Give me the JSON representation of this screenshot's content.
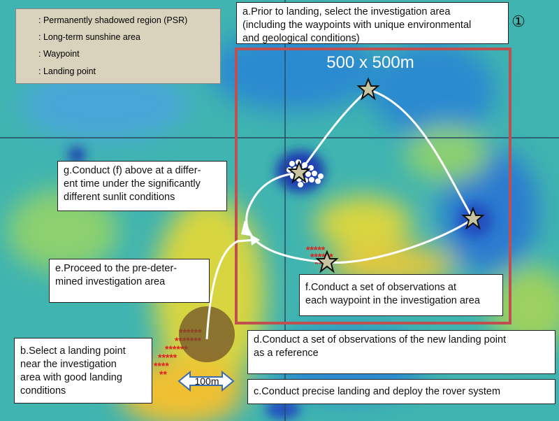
{
  "legend": {
    "items": [
      {
        "label": ": Permanently shadowed region (PSR)"
      },
      {
        "label": ": Long-term sunshine area"
      },
      {
        "label": ": Waypoint"
      },
      {
        "label": ": Landing point"
      }
    ]
  },
  "area_label": "500 x 500m",
  "step_marker": "①",
  "scale_label": "100m",
  "boxes": [
    {
      "id": "a",
      "lines": [
        "a.Prior to landing, select the investigation area",
        "(including the waypoints with unique environmental",
        "and geological conditions)"
      ]
    },
    {
      "id": "g",
      "lines": [
        "g.Conduct (f) above at a differ-",
        "ent time under the significantly",
        "different sunlit conditions"
      ]
    },
    {
      "id": "e",
      "lines": [
        "e.Proceed to the pre-deter-",
        "mined investigation area"
      ]
    },
    {
      "id": "f",
      "lines": [
        "f.Conduct a set of observations at",
        "each waypoint in the investigation area"
      ]
    },
    {
      "id": "d",
      "lines": [
        "d.Conduct a set of observations of the new landing point",
        "as a reference"
      ]
    },
    {
      "id": "b",
      "lines": [
        "b.Select a landing point",
        "near the investigation",
        "area with good landing",
        "conditions"
      ]
    },
    {
      "id": "c",
      "lines": [
        "c.Conduct precise landing and deploy the rover system"
      ]
    }
  ]
}
